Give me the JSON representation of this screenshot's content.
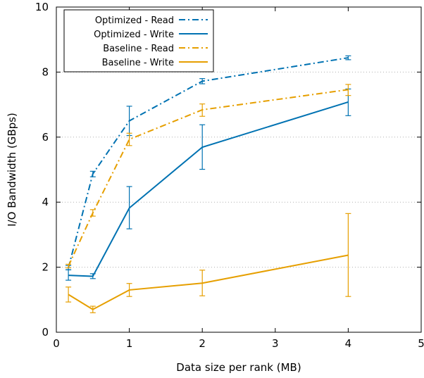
{
  "chart_data": {
    "type": "line",
    "title": "",
    "xlabel": "Data size per rank (MB)",
    "ylabel": "I/O Bandwidth (GBps)",
    "xlim": [
      0,
      5
    ],
    "ylim": [
      0,
      10
    ],
    "xticks": [
      0,
      1,
      2,
      3,
      4,
      5
    ],
    "yticks": [
      0,
      2,
      4,
      6,
      8,
      10
    ],
    "grid": "horizontal dotted at y = 2, 4, 6, 8",
    "legend_position": "top-left",
    "series": [
      {
        "name": "Optimized - Read",
        "color": "#0072b2",
        "dash": "dash-dot",
        "x": [
          0.165,
          0.5,
          1,
          2,
          4
        ],
        "y": [
          1.98,
          4.87,
          6.5,
          7.72,
          8.44
        ],
        "err_low": [
          1.92,
          4.78,
          6.05,
          7.64,
          8.38
        ],
        "err_high": [
          2.05,
          4.95,
          6.95,
          7.8,
          8.5
        ]
      },
      {
        "name": "Optimized - Write",
        "color": "#0072b2",
        "dash": "solid",
        "x": [
          0.165,
          0.5,
          1,
          2,
          4
        ],
        "y": [
          1.75,
          1.72,
          3.82,
          5.69,
          7.08
        ],
        "err_low": [
          1.6,
          1.65,
          3.18,
          5.01,
          6.66
        ],
        "err_high": [
          1.92,
          1.8,
          4.48,
          6.38,
          7.48
        ]
      },
      {
        "name": "Baseline - Read",
        "color": "#e69f00",
        "dash": "dash-dot",
        "x": [
          0.165,
          0.5,
          1,
          2,
          4
        ],
        "y": [
          2.03,
          3.67,
          5.93,
          6.84,
          7.46
        ],
        "err_low": [
          1.98,
          3.57,
          5.74,
          6.64,
          7.28
        ],
        "err_high": [
          2.09,
          3.77,
          6.12,
          7.02,
          7.62
        ]
      },
      {
        "name": "Baseline - Write",
        "color": "#e69f00",
        "dash": "solid",
        "x": [
          0.165,
          0.5,
          1,
          2,
          4
        ],
        "y": [
          1.16,
          0.7,
          1.3,
          1.51,
          2.37
        ],
        "err_low": [
          0.93,
          0.6,
          1.1,
          1.12,
          1.1
        ],
        "err_high": [
          1.39,
          0.8,
          1.5,
          1.91,
          3.65
        ]
      }
    ]
  }
}
